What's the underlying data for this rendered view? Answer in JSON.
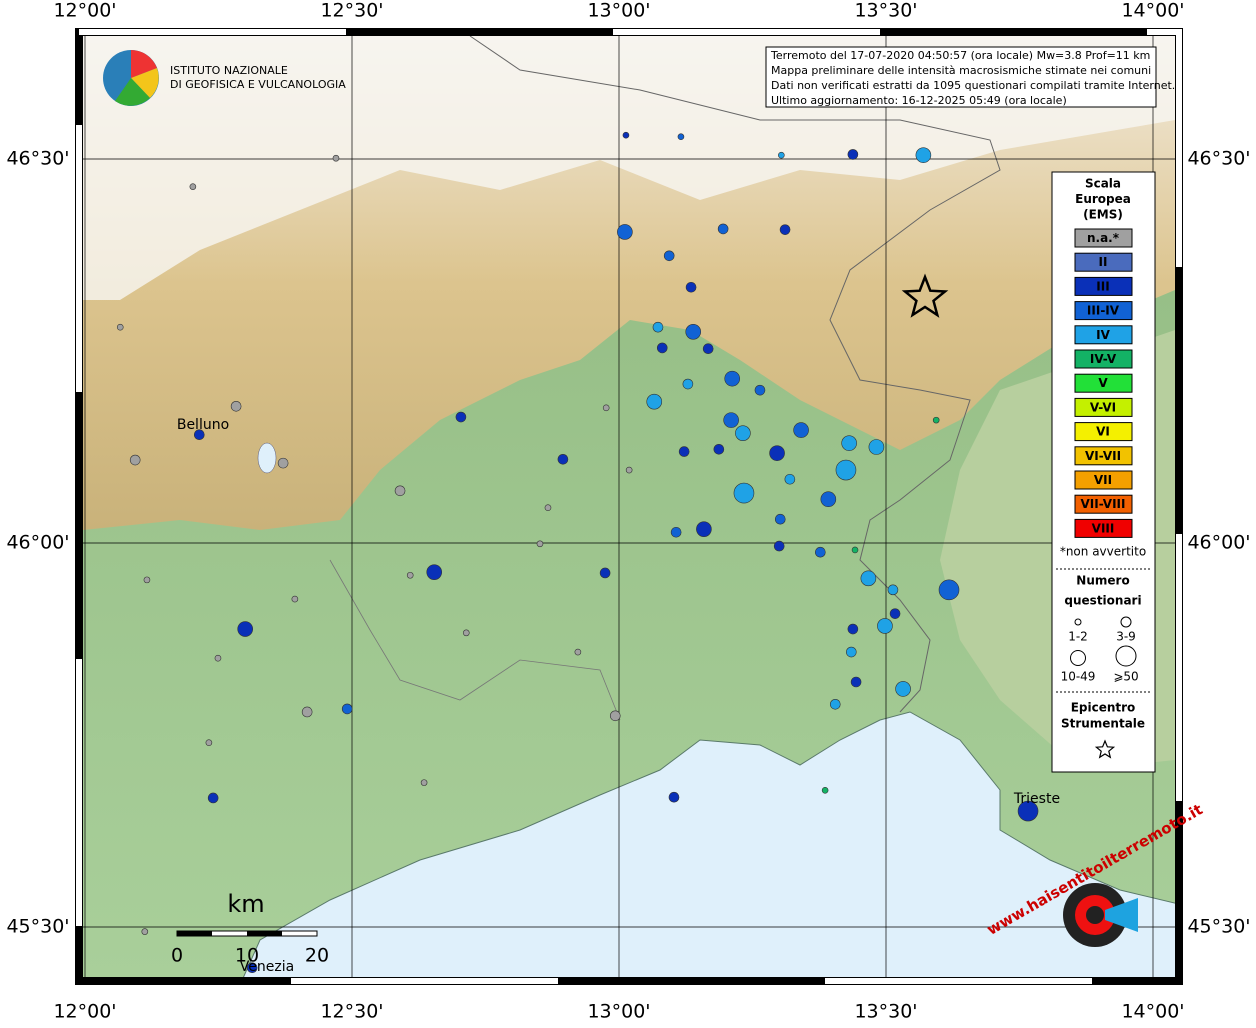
{
  "info": [
    "Terremoto del 17-07-2020 04:50:57 (ora locale) Mw=3.8 Prof=11 km",
    "Mappa preliminare delle intensità macrosismiche stimate nei comuni",
    "Dati non verificati estratti da 1095 questionari compilati tramite Internet.",
    "Ultimo aggiornamento: 16-12-2025 05:49 (ora locale)"
  ],
  "logos": {
    "ingv": [
      "ISTITUTO NAZIONALE",
      "DI GEOFISICA E VULCANOLOGIA"
    ],
    "hsit": "www.haisentitoilterremoto.it"
  },
  "places": [
    "Belluno",
    "Trieste",
    "Venezia"
  ],
  "scale": {
    "unit": "km",
    "labels": [
      "0",
      "10",
      "20"
    ]
  },
  "lon_ticks": [
    {
      "value": 12,
      "label": "12°00'"
    },
    {
      "value": 12.5,
      "label": "12°30'"
    },
    {
      "value": 13,
      "label": "13°00'"
    },
    {
      "value": 13.5,
      "label": "13°30'"
    },
    {
      "value": 14,
      "label": "14°00'"
    }
  ],
  "lat_ticks": [
    {
      "value": 46.5,
      "label": "46°30'"
    },
    {
      "value": 46,
      "label": "46°00'"
    },
    {
      "value": 45.5,
      "label": "45°30'"
    }
  ],
  "legend": {
    "title": [
      "Scala",
      "Europea",
      "(EMS)"
    ],
    "note": "*non avvertito",
    "size_title": [
      "Numero",
      "questionari"
    ],
    "epicenter_title": [
      "Epicentro",
      "Strumentale"
    ]
  },
  "intensity_classes": [
    {
      "label": "n.a.*",
      "color": "#a0a0a0"
    },
    {
      "label": "II",
      "color": "#4a6bbd"
    },
    {
      "label": "III",
      "color": "#0a30b8"
    },
    {
      "label": "III-IV",
      "color": "#1162d4"
    },
    {
      "label": "IV",
      "color": "#1fa2e6"
    },
    {
      "label": "IV-V",
      "color": "#13b265"
    },
    {
      "label": "V",
      "color": "#22e038"
    },
    {
      "label": "V-VI",
      "color": "#c4f000"
    },
    {
      "label": "VI",
      "color": "#f4f000"
    },
    {
      "label": "VI-VII",
      "color": "#f2c200"
    },
    {
      "label": "VII",
      "color": "#f4a000"
    },
    {
      "label": "VII-VIII",
      "color": "#f26000"
    },
    {
      "label": "VIII",
      "color": "#f00000"
    }
  ],
  "size_classes": [
    "1-2",
    "3-9",
    "10-49",
    "⩾50"
  ],
  "epicenter": {
    "lon": 13.573,
    "lat": 46.319
  },
  "points": [
    {
      "lon": 13.013,
      "lat": 46.531,
      "class": 2,
      "size": 0
    },
    {
      "lon": 13.116,
      "lat": 46.529,
      "class": 3,
      "size": 0
    },
    {
      "lon": 13.304,
      "lat": 46.505,
      "class": 4,
      "size": 0
    },
    {
      "lon": 13.438,
      "lat": 46.506,
      "class": 2,
      "size": 1
    },
    {
      "lon": 13.57,
      "lat": 46.505,
      "class": 4,
      "size": 2
    },
    {
      "lon": 13.011,
      "lat": 46.405,
      "class": 3,
      "size": 2
    },
    {
      "lon": 13.195,
      "lat": 46.409,
      "class": 3,
      "size": 1
    },
    {
      "lon": 13.311,
      "lat": 46.408,
      "class": 2,
      "size": 1
    },
    {
      "lon": 13.094,
      "lat": 46.374,
      "class": 3,
      "size": 1
    },
    {
      "lon": 13.135,
      "lat": 46.333,
      "class": 2,
      "size": 1
    },
    {
      "lon": 13.073,
      "lat": 46.281,
      "class": 4,
      "size": 1
    },
    {
      "lon": 13.139,
      "lat": 46.275,
      "class": 3,
      "size": 2
    },
    {
      "lon": 13.081,
      "lat": 46.254,
      "class": 2,
      "size": 1
    },
    {
      "lon": 13.167,
      "lat": 46.253,
      "class": 2,
      "size": 1
    },
    {
      "lon": 13.212,
      "lat": 46.214,
      "class": 3,
      "size": 2
    },
    {
      "lon": 13.129,
      "lat": 46.207,
      "class": 4,
      "size": 1
    },
    {
      "lon": 13.264,
      "lat": 46.199,
      "class": 3,
      "size": 1
    },
    {
      "lon": 13.066,
      "lat": 46.184,
      "class": 4,
      "size": 2
    },
    {
      "lon": 13.21,
      "lat": 46.16,
      "class": 3,
      "size": 2
    },
    {
      "lon": 13.232,
      "lat": 46.143,
      "class": 4,
      "size": 2
    },
    {
      "lon": 13.341,
      "lat": 46.147,
      "class": 3,
      "size": 2
    },
    {
      "lon": 13.431,
      "lat": 46.13,
      "class": 4,
      "size": 2
    },
    {
      "lon": 13.482,
      "lat": 46.125,
      "class": 4,
      "size": 2
    },
    {
      "lon": 13.296,
      "lat": 46.117,
      "class": 2,
      "size": 2
    },
    {
      "lon": 13.187,
      "lat": 46.122,
      "class": 2,
      "size": 1
    },
    {
      "lon": 13.122,
      "lat": 46.119,
      "class": 2,
      "size": 1
    },
    {
      "lon": 13.425,
      "lat": 46.095,
      "class": 4,
      "size": 3
    },
    {
      "lon": 13.32,
      "lat": 46.083,
      "class": 4,
      "size": 1
    },
    {
      "lon": 13.234,
      "lat": 46.065,
      "class": 4,
      "size": 3
    },
    {
      "lon": 13.392,
      "lat": 46.057,
      "class": 3,
      "size": 2
    },
    {
      "lon": 13.159,
      "lat": 46.018,
      "class": 2,
      "size": 2
    },
    {
      "lon": 13.107,
      "lat": 46.014,
      "class": 3,
      "size": 1
    },
    {
      "lon": 13.302,
      "lat": 46.031,
      "class": 3,
      "size": 1
    },
    {
      "lon": 13.3,
      "lat": 45.996,
      "class": 2,
      "size": 1
    },
    {
      "lon": 13.377,
      "lat": 45.988,
      "class": 3,
      "size": 1
    },
    {
      "lon": 13.467,
      "lat": 45.954,
      "class": 4,
      "size": 2
    },
    {
      "lon": 13.618,
      "lat": 45.939,
      "class": 3,
      "size": 3
    },
    {
      "lon": 13.513,
      "lat": 45.939,
      "class": 4,
      "size": 1
    },
    {
      "lon": 13.517,
      "lat": 45.908,
      "class": 2,
      "size": 1
    },
    {
      "lon": 13.498,
      "lat": 45.892,
      "class": 4,
      "size": 2
    },
    {
      "lon": 13.438,
      "lat": 45.888,
      "class": 2,
      "size": 1
    },
    {
      "lon": 13.435,
      "lat": 45.858,
      "class": 4,
      "size": 1
    },
    {
      "lon": 13.444,
      "lat": 45.819,
      "class": 2,
      "size": 1
    },
    {
      "lon": 13.532,
      "lat": 45.81,
      "class": 4,
      "size": 2
    },
    {
      "lon": 13.405,
      "lat": 45.79,
      "class": 4,
      "size": 1
    },
    {
      "lon": 13.766,
      "lat": 45.651,
      "class": 2,
      "size": 3
    },
    {
      "lon": 12.974,
      "lat": 45.961,
      "class": 2,
      "size": 1
    },
    {
      "lon": 12.895,
      "lat": 46.109,
      "class": 2,
      "size": 1
    },
    {
      "lon": 12.704,
      "lat": 46.164,
      "class": 2,
      "size": 1
    },
    {
      "lon": 12.654,
      "lat": 45.962,
      "class": 2,
      "size": 2
    },
    {
      "lon": 12.3,
      "lat": 45.888,
      "class": 2,
      "size": 2
    },
    {
      "lon": 12.491,
      "lat": 45.784,
      "class": 3,
      "size": 1
    },
    {
      "lon": 12.24,
      "lat": 45.668,
      "class": 2,
      "size": 1
    },
    {
      "lon": 12.214,
      "lat": 46.141,
      "class": 2,
      "size": 1
    },
    {
      "lon": 13.103,
      "lat": 45.669,
      "class": 2,
      "size": 1
    },
    {
      "lon": 12.313,
      "lat": 45.447,
      "class": 2,
      "size": 1
    },
    {
      "lon": 13.594,
      "lat": 46.16,
      "class": 5,
      "size": 0
    },
    {
      "lon": 13.442,
      "lat": 45.991,
      "class": 5,
      "size": 0
    },
    {
      "lon": 13.386,
      "lat": 45.678,
      "class": 5,
      "size": 0
    },
    {
      "lon": 12.202,
      "lat": 46.464,
      "class": 0,
      "size": 0
    },
    {
      "lon": 12.066,
      "lat": 46.281,
      "class": 0,
      "size": 0
    },
    {
      "lon": 12.283,
      "lat": 46.178,
      "class": 0,
      "size": 1
    },
    {
      "lon": 12.371,
      "lat": 46.104,
      "class": 0,
      "size": 1
    },
    {
      "lon": 12.094,
      "lat": 46.108,
      "class": 0,
      "size": 1
    },
    {
      "lon": 12.59,
      "lat": 46.068,
      "class": 0,
      "size": 1
    },
    {
      "lon": 12.867,
      "lat": 46.046,
      "class": 0,
      "size": 0
    },
    {
      "lon": 12.976,
      "lat": 46.176,
      "class": 0,
      "size": 0
    },
    {
      "lon": 12.852,
      "lat": 45.999,
      "class": 0,
      "size": 0
    },
    {
      "lon": 12.609,
      "lat": 45.958,
      "class": 0,
      "size": 0
    },
    {
      "lon": 12.393,
      "lat": 45.927,
      "class": 0,
      "size": 0
    },
    {
      "lon": 12.116,
      "lat": 45.952,
      "class": 0,
      "size": 0
    },
    {
      "lon": 12.249,
      "lat": 45.85,
      "class": 0,
      "size": 0
    },
    {
      "lon": 12.416,
      "lat": 45.78,
      "class": 0,
      "size": 1
    },
    {
      "lon": 12.714,
      "lat": 45.883,
      "class": 0,
      "size": 0
    },
    {
      "lon": 12.923,
      "lat": 45.858,
      "class": 0,
      "size": 0
    },
    {
      "lon": 12.993,
      "lat": 45.775,
      "class": 0,
      "size": 1
    },
    {
      "lon": 12.635,
      "lat": 45.688,
      "class": 0,
      "size": 0
    },
    {
      "lon": 12.232,
      "lat": 45.74,
      "class": 0,
      "size": 0
    },
    {
      "lon": 12.112,
      "lat": 45.494,
      "class": 0,
      "size": 0
    },
    {
      "lon": 12.47,
      "lat": 46.501,
      "class": 0,
      "size": 0
    },
    {
      "lon": 13.019,
      "lat": 46.095,
      "class": 0,
      "size": 0
    }
  ]
}
